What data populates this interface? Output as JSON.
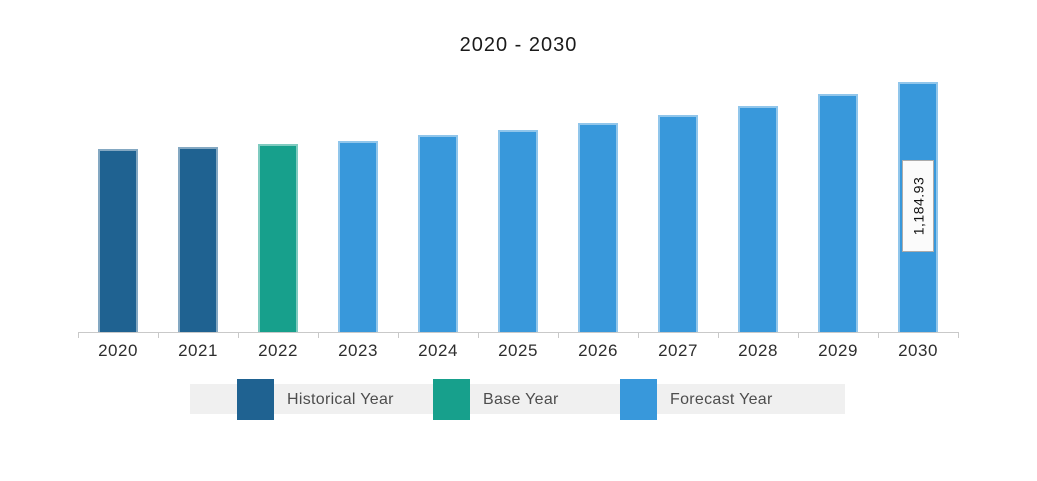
{
  "title": "2020 - 2030",
  "chart_data": {
    "type": "bar",
    "title": "2020 - 2030",
    "xlabel": "",
    "ylabel": "",
    "categories": [
      "2020",
      "2021",
      "2022",
      "2023",
      "2024",
      "2025",
      "2026",
      "2027",
      "2028",
      "2029",
      "2030"
    ],
    "values": [
      867,
      878,
      891,
      907,
      932,
      959,
      989,
      1027,
      1071,
      1127,
      1184.93
    ],
    "series_periods": [
      "historical",
      "historical",
      "base",
      "forecast",
      "forecast",
      "forecast",
      "forecast",
      "forecast",
      "forecast",
      "forecast",
      "forecast"
    ],
    "colors": {
      "historical": "#1F6291",
      "base": "#17A08C",
      "forecast": "#3898DB"
    },
    "axis_color": "#c9c9c9",
    "legend_band_color": "#f0f0f0",
    "grid": false,
    "ylim": [
      0,
      1250
    ],
    "data_labels": [
      {
        "category": "2030",
        "text": "1,184.93"
      }
    ],
    "legend": {
      "position": "bottom",
      "entries": [
        {
          "key": "historical",
          "label": "Historical Year"
        },
        {
          "key": "base",
          "label": "Base Year"
        },
        {
          "key": "forecast",
          "label": "Forecast Year"
        }
      ]
    }
  }
}
